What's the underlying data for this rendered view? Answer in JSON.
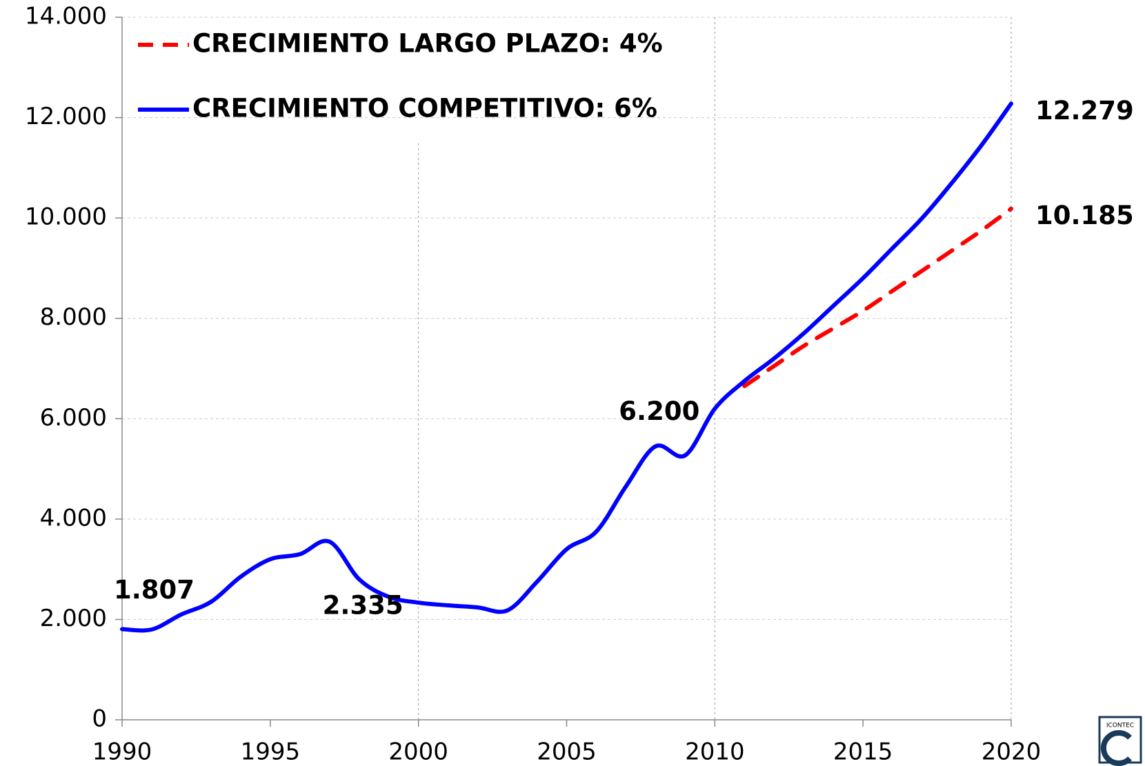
{
  "chart_data": {
    "type": "line",
    "x": [
      1990,
      1991,
      1992,
      1993,
      1994,
      1995,
      1996,
      1997,
      1998,
      1999,
      2000,
      2001,
      2002,
      2003,
      2004,
      2005,
      2006,
      2007,
      2008,
      2009,
      2010,
      2011,
      2012,
      2013,
      2014,
      2015,
      2016,
      2017,
      2018,
      2019,
      2020
    ],
    "series": [
      {
        "name": "CRECIMIENTO LARGO PLAZO: 4%",
        "color": "#ff0000",
        "dash": true,
        "values": [
          null,
          null,
          null,
          null,
          null,
          null,
          null,
          null,
          null,
          null,
          null,
          null,
          null,
          null,
          null,
          null,
          null,
          null,
          null,
          null,
          null,
          6650,
          7050,
          7450,
          7800,
          8150,
          8550,
          8950,
          9350,
          9750,
          10185
        ],
        "value_labels": [
          null,
          null,
          null,
          null,
          null,
          null,
          null,
          null,
          null,
          null,
          null,
          null,
          null,
          null,
          null,
          null,
          null,
          null,
          null,
          null,
          null,
          null,
          null,
          null,
          null,
          null,
          null,
          null,
          null,
          null,
          "10.185"
        ]
      },
      {
        "name": "CRECIMIENTO COMPETITIVO: 6%",
        "color": "#0000ff",
        "dash": false,
        "values": [
          1807,
          1800,
          2100,
          2350,
          2850,
          3200,
          3300,
          3550,
          2800,
          2450,
          2335,
          2280,
          2240,
          2180,
          2750,
          3400,
          3750,
          4650,
          5450,
          5270,
          6200,
          6750,
          7200,
          7700,
          8250,
          8800,
          9400,
          10000,
          10700,
          11450,
          12279
        ],
        "value_labels": [
          "1.807",
          null,
          null,
          null,
          null,
          null,
          null,
          null,
          null,
          null,
          "2.335",
          null,
          null,
          null,
          null,
          null,
          null,
          null,
          null,
          null,
          "6.200",
          null,
          null,
          null,
          null,
          null,
          null,
          null,
          null,
          null,
          "12.279"
        ]
      }
    ],
    "xlim": [
      1990,
      2020
    ],
    "xticks": [
      1990,
      1995,
      2000,
      2005,
      2010,
      2015,
      2020
    ],
    "ylim": [
      0,
      14000
    ],
    "yticks": [
      0,
      {
        "value": 2000,
        "label": "2.000"
      },
      {
        "value": 4000,
        "label": "4.000"
      },
      {
        "value": 6000,
        "label": "6.000"
      },
      {
        "value": 8000,
        "label": "8.000"
      },
      {
        "value": 10000,
        "label": "10.000"
      },
      {
        "value": 12000,
        "label": "12.000"
      },
      {
        "value": 14000,
        "label": "14.000"
      }
    ],
    "grid": true,
    "legend": "upper left",
    "logo_text": "ICONTEC"
  }
}
